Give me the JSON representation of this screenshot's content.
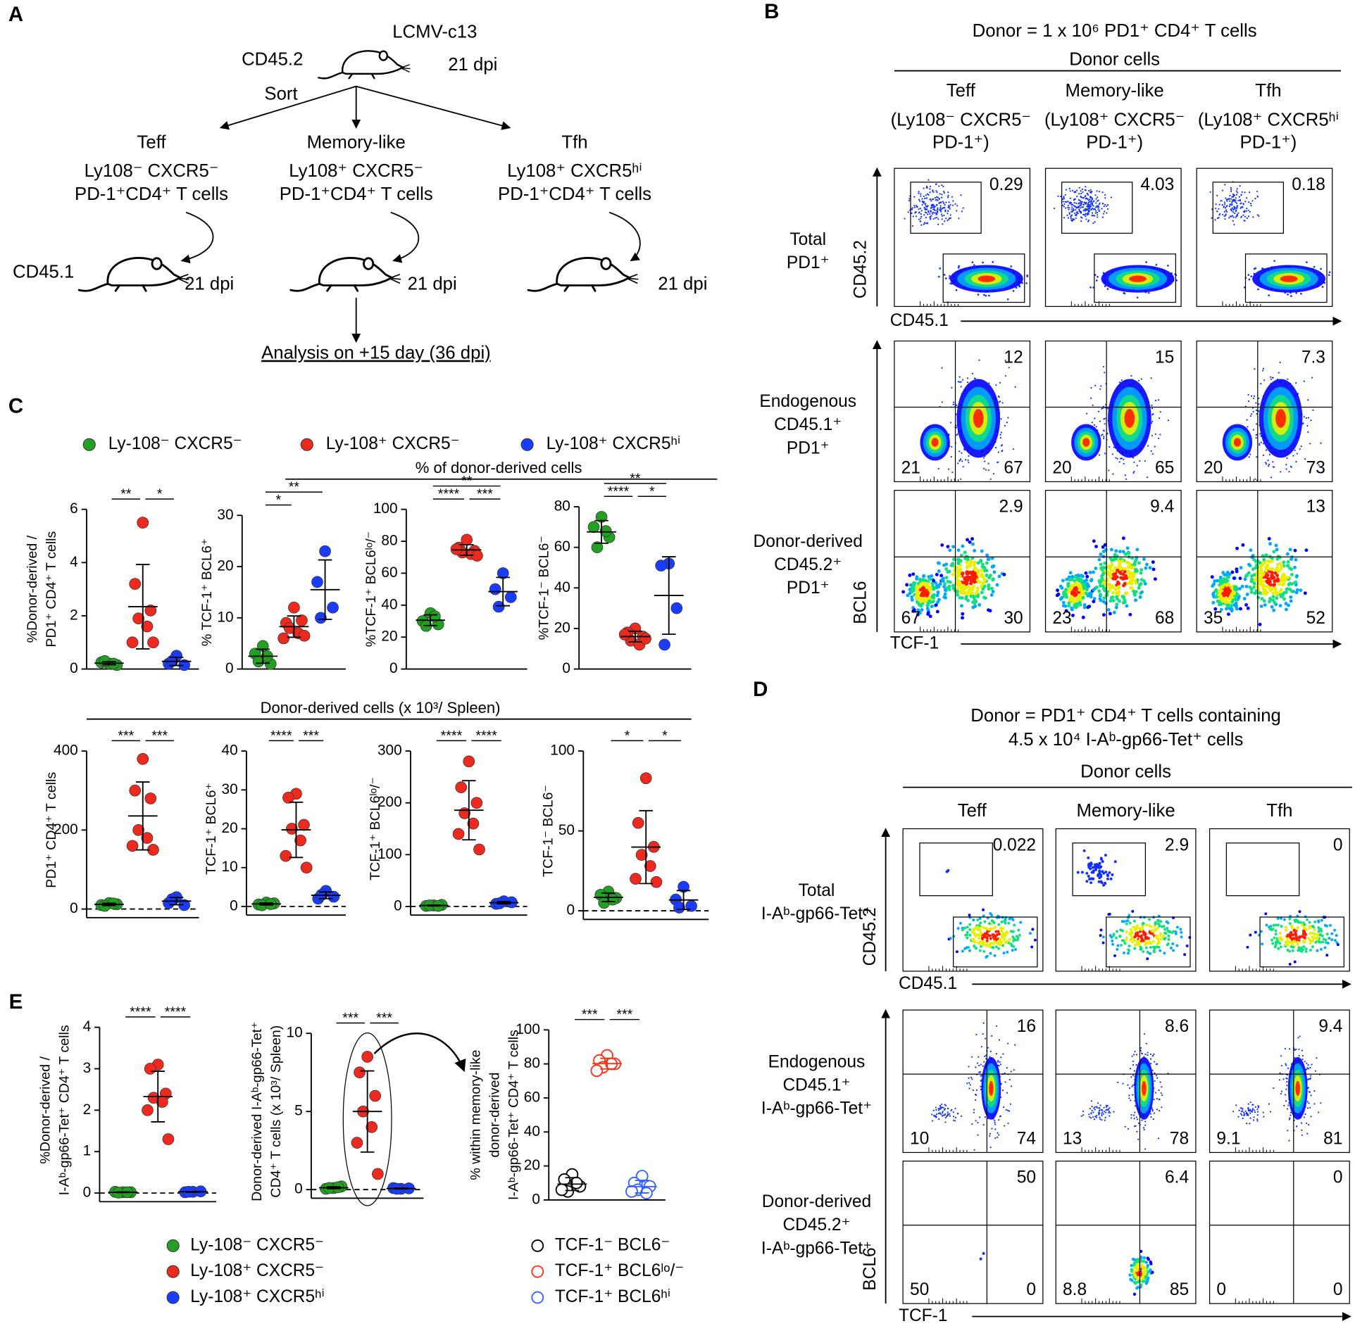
{
  "figure": {
    "panel_labels": [
      "A",
      "B",
      "C",
      "D",
      "E"
    ],
    "a": {
      "infection": "LCMV-c13",
      "donor_mouse": "CD45.2",
      "donor_dpi": "21 dpi",
      "sort": "Sort",
      "groups": [
        {
          "name": "Teff",
          "color": "#1a9a1a",
          "lines": [
            "Ly108⁻ CXCR5⁻",
            "PD-1⁺CD4⁺ T cells"
          ],
          "dpi": "21 dpi"
        },
        {
          "name": "Memory-like",
          "color": "#ff0000",
          "lines": [
            "Ly108⁺ CXCR5⁻",
            "PD-1⁺CD4⁺ T cells"
          ],
          "dpi": "21 dpi"
        },
        {
          "name": "Tfh",
          "color": "#0000ff",
          "lines": [
            "Ly108⁺ CXCR5ʰⁱ",
            "PD-1⁺CD4⁺ T cells"
          ],
          "dpi": "21 dpi"
        }
      ],
      "recipient_mouse": "CD45.1",
      "analysis": "Analysis on +15 day (36 dpi)"
    },
    "b": {
      "title": [
        "Donor = 1 x 10⁶ PD1⁺ CD4⁺ T cells"
      ],
      "subtitle": "Donor cells",
      "columns": [
        {
          "name": "Teff",
          "color": "#1a9a1a",
          "lines": [
            "(Ly108⁻ CXCR5⁻",
            "PD-1⁺)"
          ]
        },
        {
          "name": "Memory-like",
          "color": "#ff0000",
          "lines": [
            "(Ly108⁺ CXCR5⁻",
            "PD-1⁺)"
          ]
        },
        {
          "name": "Tfh",
          "color": "#0000ff",
          "lines": [
            "(Ly108⁺ CXCR5ʰⁱ",
            "PD-1⁺)"
          ]
        }
      ],
      "axes": {
        "gate": {
          "x": "CD45.1",
          "y": "CD45.2"
        },
        "quadrant": {
          "x": "TCF-1",
          "y": "BCL6"
        }
      },
      "rows": [
        {
          "label": [
            "Total",
            "PD1⁺"
          ],
          "plots": [
            {
              "gate": 0.29
            },
            {
              "gate": 4.03
            },
            {
              "gate": 0.18
            }
          ]
        },
        {
          "label": [
            "Endogenous",
            "CD45.1⁺",
            "PD1⁺"
          ],
          "plots": [
            {
              "upper_right": 12,
              "lower_left": 21,
              "lower_right": 67
            },
            {
              "upper_right": 15,
              "lower_left": 20,
              "lower_right": 65
            },
            {
              "upper_right": 7.3,
              "lower_left": 20,
              "lower_right": 73
            }
          ]
        },
        {
          "label": [
            "Donor-derived",
            "CD45.2⁺",
            "PD1⁺"
          ],
          "plots": [
            {
              "upper_right": 2.9,
              "lower_left": 67,
              "lower_right": 30
            },
            {
              "upper_right": 9.4,
              "lower_left": 23,
              "lower_right": 68
            },
            {
              "upper_right": 13,
              "lower_left": 35,
              "lower_right": 52
            }
          ]
        }
      ]
    },
    "c": {
      "legend": [
        {
          "name": "Ly-108⁻ CXCR5⁻",
          "color": "#22a022"
        },
        {
          "name": "Ly-108⁺ CXCR5⁻",
          "color": "#ee2a1e"
        },
        {
          "name": "Ly-108⁺ CXCR5ʰⁱ",
          "color": "#1a3cff"
        }
      ],
      "top_header": "% of donor-derived cells",
      "bottom_header": "Donor-derived cells (x 10³/ Spleen)"
    },
    "d": {
      "title": [
        "Donor = PD1⁺ CD4⁺ T cells containing",
        "4.5 x 10⁴ I-Aᵇ-gp66-Tet⁺ cells"
      ],
      "subtitle": "Donor cells",
      "columns": [
        {
          "name": "Teff",
          "color": "#1a9a1a",
          "lines": []
        },
        {
          "name": "Memory-like",
          "color": "#ff0000",
          "lines": []
        },
        {
          "name": "Tfh",
          "color": "#0000ff",
          "lines": []
        }
      ],
      "axes": {
        "gate": {
          "x": "CD45.1",
          "y": "CD45.2"
        },
        "quadrant": {
          "x": "TCF-1",
          "y": "BCL6"
        }
      },
      "rows": [
        {
          "label": [
            "Total",
            "I-Aᵇ-gp66-Tet⁺"
          ],
          "plots": [
            {
              "gate": 0.022
            },
            {
              "gate": 2.9
            },
            {
              "gate": 0
            }
          ]
        },
        {
          "label": [
            "Endogenous",
            "CD45.1⁺",
            "I-Aᵇ-gp66-Tet⁺"
          ],
          "plots": [
            {
              "upper_right": 16,
              "lower_left": 10,
              "lower_right": 74
            },
            {
              "upper_right": 8.6,
              "lower_left": 13,
              "lower_right": 78
            },
            {
              "upper_right": 9.4,
              "lower_left": 9.1,
              "lower_right": 81
            }
          ]
        },
        {
          "label": [
            "Donor-derived",
            "CD45.2⁺",
            "I-Aᵇ-gp66-Tet⁺"
          ],
          "plots": [
            {
              "upper_right": 50,
              "lower_left": 50,
              "lower_right": 0
            },
            {
              "upper_right": 6.4,
              "lower_left": 8.8,
              "lower_right": 85
            },
            {
              "upper_right": 0,
              "lower_left": 0,
              "lower_right": 0
            }
          ]
        }
      ]
    },
    "e": {
      "legend_groups": [
        {
          "name": "Ly-108⁻ CXCR5⁻",
          "color": "#22a022"
        },
        {
          "name": "Ly-108⁺ CXCR5⁻",
          "color": "#ee2a1e"
        },
        {
          "name": "Ly-108⁺ CXCR5ʰⁱ",
          "color": "#1a3cff"
        }
      ],
      "legend_subsets": [
        {
          "name": "TCF-1⁻ BCL6⁻",
          "color": "#000000"
        },
        {
          "name": "TCF-1⁺ BCL6ˡᵒ/⁻",
          "color": "#ff3010"
        },
        {
          "name": "TCF-1⁺ BCL6ʰⁱ",
          "color": "#3060ff"
        }
      ]
    }
  },
  "chart_data": [
    {
      "type": "dot",
      "y_label": [
        "%Donor-derived /",
        "PD1⁺ CD4⁺ T cells"
      ],
      "ylim": [
        0,
        6
      ],
      "yticks": [
        0,
        2,
        4,
        6
      ],
      "zero_line": false,
      "marker": "filled",
      "series": [
        {
          "color": "#22a022",
          "values": [
            0.2,
            0.25,
            0.15,
            0.3,
            0.2
          ]
        },
        {
          "color": "#ee2a1e",
          "values": [
            5.5,
            3.2,
            2.2,
            1.9,
            1.6,
            1.0,
            1.0
          ]
        },
        {
          "color": "#1a3cff",
          "values": [
            0.5,
            0.2,
            0.15,
            0.3
          ]
        }
      ],
      "comparisons": [
        {
          "groups": [
            0,
            1
          ],
          "label": "**"
        },
        {
          "groups": [
            1,
            2
          ],
          "label": "*"
        }
      ]
    },
    {
      "type": "dot",
      "y_label": [
        "% TCF-1⁺ BCL6⁺"
      ],
      "ylim": [
        0,
        30
      ],
      "yticks": [
        0,
        10,
        20,
        30
      ],
      "zero_line": false,
      "marker": "filled",
      "series": [
        {
          "color": "#22a022",
          "values": [
            4.5,
            3,
            1,
            1.5,
            2.5
          ]
        },
        {
          "color": "#ee2a1e",
          "values": [
            12,
            9,
            9.5,
            8,
            7,
            6,
            6.5
          ]
        },
        {
          "color": "#1a3cff",
          "values": [
            23,
            17,
            12,
            10
          ]
        }
      ],
      "comparisons": [
        {
          "groups": [
            0,
            1
          ],
          "label": "*"
        },
        {
          "groups": [
            0,
            2
          ],
          "label": "**"
        }
      ]
    },
    {
      "type": "dot",
      "y_label": [
        "%TCF-1⁺ BCL6ˡᵒ/⁻"
      ],
      "ylim": [
        0,
        100
      ],
      "yticks": [
        0,
        20,
        40,
        60,
        80,
        100
      ],
      "zero_line": false,
      "marker": "filled",
      "series": [
        {
          "color": "#22a022",
          "values": [
            35,
            30,
            28,
            27,
            33
          ]
        },
        {
          "color": "#ee2a1e",
          "values": [
            81,
            76,
            74,
            73,
            72,
            75,
            71
          ]
        },
        {
          "color": "#1a3cff",
          "values": [
            60,
            50,
            45,
            39
          ]
        }
      ],
      "comparisons": [
        {
          "groups": [
            0,
            2
          ],
          "label": "**"
        },
        {
          "groups": [
            0,
            1
          ],
          "label": "****"
        },
        {
          "groups": [
            1,
            2
          ],
          "label": "***"
        }
      ]
    },
    {
      "type": "dot",
      "y_label": [
        "%TCF-1⁻ BCL6⁻"
      ],
      "ylim": [
        0,
        80
      ],
      "yticks": [
        0,
        20,
        40,
        60,
        80
      ],
      "zero_line": false,
      "marker": "filled",
      "series": [
        {
          "color": "#22a022",
          "values": [
            75,
            70,
            65,
            60,
            68
          ]
        },
        {
          "color": "#ee2a1e",
          "values": [
            20,
            18,
            16,
            14,
            12,
            17,
            15
          ]
        },
        {
          "color": "#1a3cff",
          "values": [
            52,
            51,
            30,
            12
          ]
        }
      ],
      "comparisons": [
        {
          "groups": [
            0,
            2
          ],
          "label": "**"
        },
        {
          "groups": [
            0,
            1
          ],
          "label": "****"
        },
        {
          "groups": [
            1,
            2
          ],
          "label": "*"
        }
      ]
    },
    {
      "type": "dot",
      "y_label": [
        "PD1⁺ CD4⁺ T cells"
      ],
      "ylim": [
        0,
        400
      ],
      "yticks": [
        0,
        200,
        400
      ],
      "zero_line": true,
      "marker": "filled",
      "series": [
        {
          "color": "#22a022",
          "values": [
            15,
            10,
            12,
            8,
            14
          ]
        },
        {
          "color": "#ee2a1e",
          "values": [
            380,
            300,
            280,
            200,
            180,
            160,
            150
          ]
        },
        {
          "color": "#1a3cff",
          "values": [
            30,
            15,
            10,
            25
          ]
        }
      ],
      "comparisons": [
        {
          "groups": [
            0,
            1
          ],
          "label": "***"
        },
        {
          "groups": [
            1,
            2
          ],
          "label": "***"
        }
      ]
    },
    {
      "type": "dot",
      "y_label": [
        "TCF-1⁺ BCL6⁺"
      ],
      "ylim": [
        0,
        40
      ],
      "yticks": [
        0,
        10,
        20,
        30,
        40
      ],
      "zero_line": true,
      "marker": "filled",
      "series": [
        {
          "color": "#22a022",
          "values": [
            1,
            0.5,
            0.8,
            0.3,
            0.6
          ]
        },
        {
          "color": "#ee2a1e",
          "values": [
            29,
            28,
            21,
            20,
            17,
            13,
            10
          ]
        },
        {
          "color": "#1a3cff",
          "values": [
            4,
            2,
            2.5,
            3
          ]
        }
      ],
      "comparisons": [
        {
          "groups": [
            0,
            1
          ],
          "label": "****"
        },
        {
          "groups": [
            1,
            2
          ],
          "label": "***"
        }
      ]
    },
    {
      "type": "dot",
      "y_label": [
        "TCF-1⁺ BCL6ˡᵒ/⁻"
      ],
      "ylim": [
        0,
        300
      ],
      "yticks": [
        0,
        100,
        200,
        300
      ],
      "zero_line": true,
      "marker": "filled",
      "series": [
        {
          "color": "#22a022",
          "values": [
            2,
            1,
            3,
            2,
            1
          ]
        },
        {
          "color": "#ee2a1e",
          "values": [
            280,
            230,
            200,
            180,
            160,
            140,
            110
          ]
        },
        {
          "color": "#1a3cff",
          "values": [
            10,
            5,
            8,
            6
          ]
        }
      ],
      "comparisons": [
        {
          "groups": [
            0,
            1
          ],
          "label": "****"
        },
        {
          "groups": [
            1,
            2
          ],
          "label": "****"
        }
      ]
    },
    {
      "type": "dot",
      "y_label": [
        "TCF-1⁻ BCL6⁻"
      ],
      "ylim": [
        0,
        100
      ],
      "yticks": [
        0,
        50,
        100
      ],
      "zero_line": true,
      "marker": "filled",
      "series": [
        {
          "color": "#22a022",
          "values": [
            12,
            10,
            8,
            5,
            7
          ]
        },
        {
          "color": "#ee2a1e",
          "values": [
            83,
            55,
            40,
            35,
            28,
            20,
            18
          ]
        },
        {
          "color": "#1a3cff",
          "values": [
            15,
            7,
            3,
            2
          ]
        }
      ],
      "comparisons": [
        {
          "groups": [
            0,
            1
          ],
          "label": "*"
        },
        {
          "groups": [
            1,
            2
          ],
          "label": "*"
        }
      ]
    },
    {
      "type": "dot",
      "y_label": [
        "%Donor-derived /",
        "I-Aᵇ-gp66-Tet⁺ CD4⁺ T cells"
      ],
      "ylim": [
        0,
        4
      ],
      "yticks": [
        0,
        1,
        2,
        3,
        4
      ],
      "zero_line": true,
      "marker": "filled",
      "series": [
        {
          "color": "#22a022",
          "values": [
            0.02,
            0.03,
            0.02,
            0.01,
            0.02
          ]
        },
        {
          "color": "#ee2a1e",
          "values": [
            3.1,
            3.0,
            2.4,
            2.3,
            2.2,
            2.0,
            1.3
          ]
        },
        {
          "color": "#1a3cff",
          "values": [
            0.03,
            0.02,
            0.04,
            0.03
          ]
        }
      ],
      "comparisons": [
        {
          "groups": [
            0,
            1
          ],
          "label": "****"
        },
        {
          "groups": [
            1,
            2
          ],
          "label": "****"
        }
      ]
    },
    {
      "type": "dot",
      "y_label": [
        "Donor-derived I-Aᵇ-gp66-Tet⁺",
        "CD4⁺ T cells (x 10³/ Spleen)"
      ],
      "ylim": [
        0,
        10
      ],
      "yticks": [
        0,
        5,
        10
      ],
      "zero_line": true,
      "marker": "filled",
      "series": [
        {
          "color": "#22a022",
          "values": [
            0.1,
            0.05,
            0.2,
            0.1,
            0.15
          ]
        },
        {
          "color": "#ee2a1e",
          "values": [
            8.5,
            7.5,
            6,
            5,
            4,
            3,
            1
          ]
        },
        {
          "color": "#1a3cff",
          "values": [
            0.05,
            0.1,
            0.08,
            0.05
          ]
        }
      ],
      "comparisons": [
        {
          "groups": [
            0,
            1
          ],
          "label": "***"
        },
        {
          "groups": [
            1,
            2
          ],
          "label": "***"
        }
      ]
    },
    {
      "type": "dot",
      "y_label": [
        "% within memory-like",
        "donor-derived",
        "I-Aᵇ-gp66-Tet⁺ CD4⁺ T cells"
      ],
      "ylim": [
        0,
        100
      ],
      "yticks": [
        0,
        20,
        40,
        60,
        80,
        100
      ],
      "zero_line": false,
      "marker": "open",
      "series": [
        {
          "color": "#000000",
          "values": [
            15,
            12,
            8,
            5,
            10,
            6
          ]
        },
        {
          "color": "#ff3010",
          "values": [
            85,
            82,
            80,
            78,
            80,
            76
          ]
        },
        {
          "color": "#3060ff",
          "values": [
            14,
            10,
            8,
            6,
            4,
            5
          ]
        }
      ],
      "comparisons": [
        {
          "groups": [
            0,
            1
          ],
          "label": "***"
        },
        {
          "groups": [
            1,
            2
          ],
          "label": "***"
        }
      ]
    }
  ]
}
